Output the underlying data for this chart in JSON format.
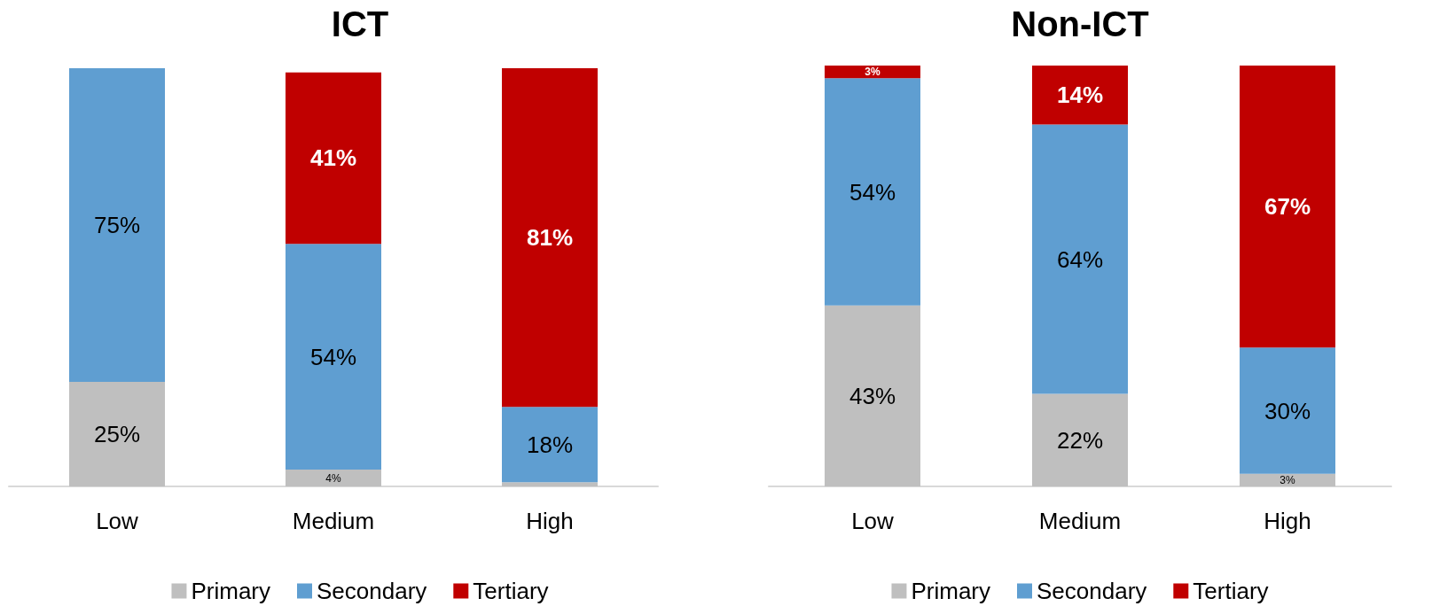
{
  "chart_data": [
    {
      "type": "bar",
      "title": "ICT",
      "categories": [
        "Low",
        "Medium",
        "High"
      ],
      "stacked": true,
      "legend": "bottom",
      "series": [
        {
          "name": "Primary",
          "color": "#bfbfbf",
          "values": [
            25,
            4,
            1
          ],
          "value_labels": [
            "25%",
            "4%",
            null
          ]
        },
        {
          "name": "Secondary",
          "color": "#5f9ed1",
          "values": [
            75,
            54,
            18
          ],
          "value_labels": [
            "75%",
            "54%",
            "18%"
          ]
        },
        {
          "name": "Tertiary",
          "color": "#c00000",
          "values": [
            null,
            41,
            81
          ],
          "value_labels": [
            null,
            "41%",
            "81%"
          ]
        }
      ]
    },
    {
      "type": "bar",
      "title": "Non-ICT",
      "categories": [
        "Low",
        "Medium",
        "High"
      ],
      "stacked": true,
      "legend": "bottom",
      "series": [
        {
          "name": "Primary",
          "color": "#bfbfbf",
          "values": [
            43,
            22,
            3
          ],
          "value_labels": [
            "43%",
            "22%",
            "3%"
          ]
        },
        {
          "name": "Secondary",
          "color": "#5f9ed1",
          "values": [
            54,
            64,
            30
          ],
          "value_labels": [
            "54%",
            "64%",
            "30%"
          ]
        },
        {
          "name": "Tertiary",
          "color": "#c00000",
          "values": [
            3,
            14,
            67
          ],
          "value_labels": [
            "3%",
            "14%",
            "67%"
          ]
        }
      ]
    }
  ]
}
